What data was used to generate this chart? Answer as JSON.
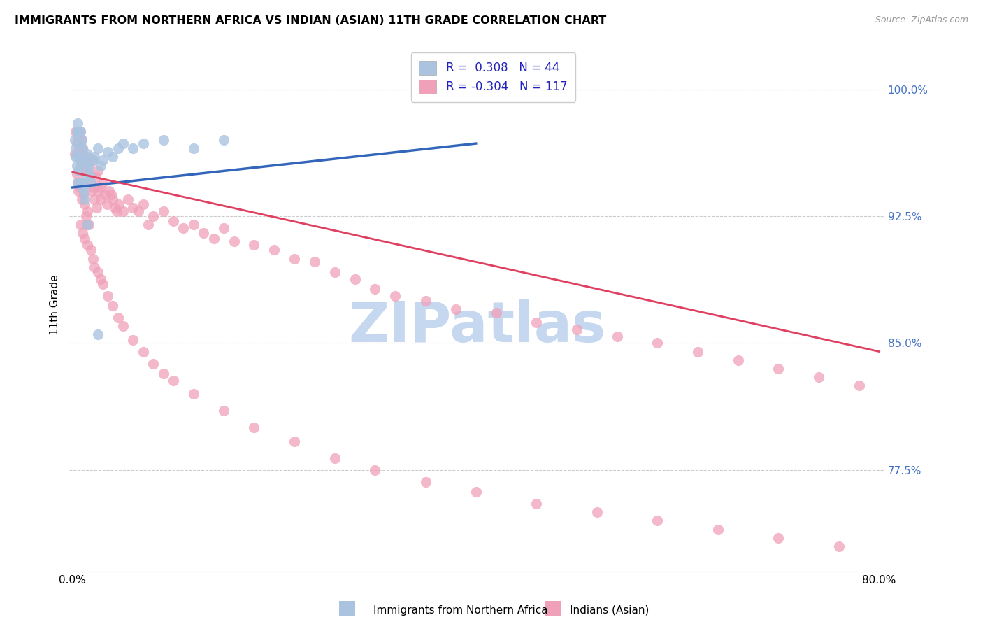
{
  "title": "IMMIGRANTS FROM NORTHERN AFRICA VS INDIAN (ASIAN) 11TH GRADE CORRELATION CHART",
  "source": "Source: ZipAtlas.com",
  "ylabel": "11th Grade",
  "ytick_labels": [
    "100.0%",
    "92.5%",
    "85.0%",
    "77.5%"
  ],
  "ytick_values": [
    1.0,
    0.925,
    0.85,
    0.775
  ],
  "y_min": 0.715,
  "y_max": 1.03,
  "x_min": -0.003,
  "x_max": 0.805,
  "legend_r_blue": "R =  0.308",
  "legend_n_blue": "N = 44",
  "legend_r_pink": "R = -0.304",
  "legend_n_pink": "N = 117",
  "blue_color": "#aac4e0",
  "pink_color": "#f0a0b8",
  "trend_blue_color": "#3366bb",
  "trend_pink_color": "#e04060",
  "watermark": "ZIPatlas",
  "watermark_color": "#c5d8f0",
  "blue_trend_x": [
    0.0,
    0.4
  ],
  "blue_trend_y": [
    0.942,
    0.968
  ],
  "pink_trend_x": [
    0.0,
    0.8
  ],
  "pink_trend_y": [
    0.951,
    0.845
  ],
  "blue_scatter_x": [
    0.002,
    0.003,
    0.003,
    0.004,
    0.004,
    0.005,
    0.005,
    0.005,
    0.006,
    0.006,
    0.007,
    0.007,
    0.008,
    0.008,
    0.009,
    0.009,
    0.01,
    0.01,
    0.011,
    0.011,
    0.012,
    0.012,
    0.013,
    0.014,
    0.015,
    0.016,
    0.017,
    0.018,
    0.02,
    0.022,
    0.025,
    0.028,
    0.03,
    0.035,
    0.04,
    0.045,
    0.05,
    0.06,
    0.07,
    0.09,
    0.12,
    0.15,
    0.015,
    0.025
  ],
  "blue_scatter_y": [
    0.97,
    0.965,
    0.96,
    0.975,
    0.955,
    0.98,
    0.96,
    0.945,
    0.975,
    0.952,
    0.968,
    0.945,
    0.975,
    0.958,
    0.97,
    0.945,
    0.965,
    0.942,
    0.96,
    0.94,
    0.958,
    0.935,
    0.955,
    0.948,
    0.962,
    0.955,
    0.95,
    0.945,
    0.958,
    0.96,
    0.965,
    0.955,
    0.958,
    0.963,
    0.96,
    0.965,
    0.968,
    0.965,
    0.968,
    0.97,
    0.965,
    0.97,
    0.92,
    0.855
  ],
  "pink_scatter_x": [
    0.002,
    0.003,
    0.004,
    0.004,
    0.005,
    0.005,
    0.006,
    0.006,
    0.007,
    0.007,
    0.008,
    0.008,
    0.009,
    0.009,
    0.01,
    0.01,
    0.011,
    0.011,
    0.012,
    0.012,
    0.013,
    0.013,
    0.014,
    0.014,
    0.015,
    0.015,
    0.016,
    0.016,
    0.017,
    0.018,
    0.019,
    0.02,
    0.021,
    0.022,
    0.023,
    0.024,
    0.025,
    0.026,
    0.027,
    0.028,
    0.03,
    0.032,
    0.034,
    0.036,
    0.038,
    0.04,
    0.042,
    0.044,
    0.046,
    0.05,
    0.055,
    0.06,
    0.065,
    0.07,
    0.075,
    0.08,
    0.09,
    0.1,
    0.11,
    0.12,
    0.13,
    0.14,
    0.15,
    0.16,
    0.18,
    0.2,
    0.22,
    0.24,
    0.26,
    0.28,
    0.3,
    0.32,
    0.35,
    0.38,
    0.42,
    0.46,
    0.5,
    0.54,
    0.58,
    0.62,
    0.66,
    0.7,
    0.74,
    0.78,
    0.008,
    0.01,
    0.012,
    0.015,
    0.018,
    0.02,
    0.022,
    0.025,
    0.028,
    0.03,
    0.035,
    0.04,
    0.045,
    0.05,
    0.06,
    0.07,
    0.08,
    0.09,
    0.1,
    0.12,
    0.15,
    0.18,
    0.22,
    0.26,
    0.3,
    0.35,
    0.4,
    0.46,
    0.52,
    0.58,
    0.64,
    0.7,
    0.76
  ],
  "pink_scatter_y": [
    0.962,
    0.975,
    0.968,
    0.95,
    0.972,
    0.945,
    0.968,
    0.94,
    0.965,
    0.942,
    0.975,
    0.955,
    0.97,
    0.935,
    0.965,
    0.945,
    0.96,
    0.938,
    0.958,
    0.932,
    0.955,
    0.925,
    0.952,
    0.92,
    0.96,
    0.928,
    0.955,
    0.92,
    0.95,
    0.945,
    0.94,
    0.958,
    0.942,
    0.935,
    0.948,
    0.93,
    0.952,
    0.94,
    0.942,
    0.935,
    0.945,
    0.938,
    0.932,
    0.94,
    0.938,
    0.935,
    0.93,
    0.928,
    0.932,
    0.928,
    0.935,
    0.93,
    0.928,
    0.932,
    0.92,
    0.925,
    0.928,
    0.922,
    0.918,
    0.92,
    0.915,
    0.912,
    0.918,
    0.91,
    0.908,
    0.905,
    0.9,
    0.898,
    0.892,
    0.888,
    0.882,
    0.878,
    0.875,
    0.87,
    0.868,
    0.862,
    0.858,
    0.854,
    0.85,
    0.845,
    0.84,
    0.835,
    0.83,
    0.825,
    0.92,
    0.915,
    0.912,
    0.908,
    0.905,
    0.9,
    0.895,
    0.892,
    0.888,
    0.885,
    0.878,
    0.872,
    0.865,
    0.86,
    0.852,
    0.845,
    0.838,
    0.832,
    0.828,
    0.82,
    0.81,
    0.8,
    0.792,
    0.782,
    0.775,
    0.768,
    0.762,
    0.755,
    0.75,
    0.745,
    0.74,
    0.735,
    0.73
  ]
}
